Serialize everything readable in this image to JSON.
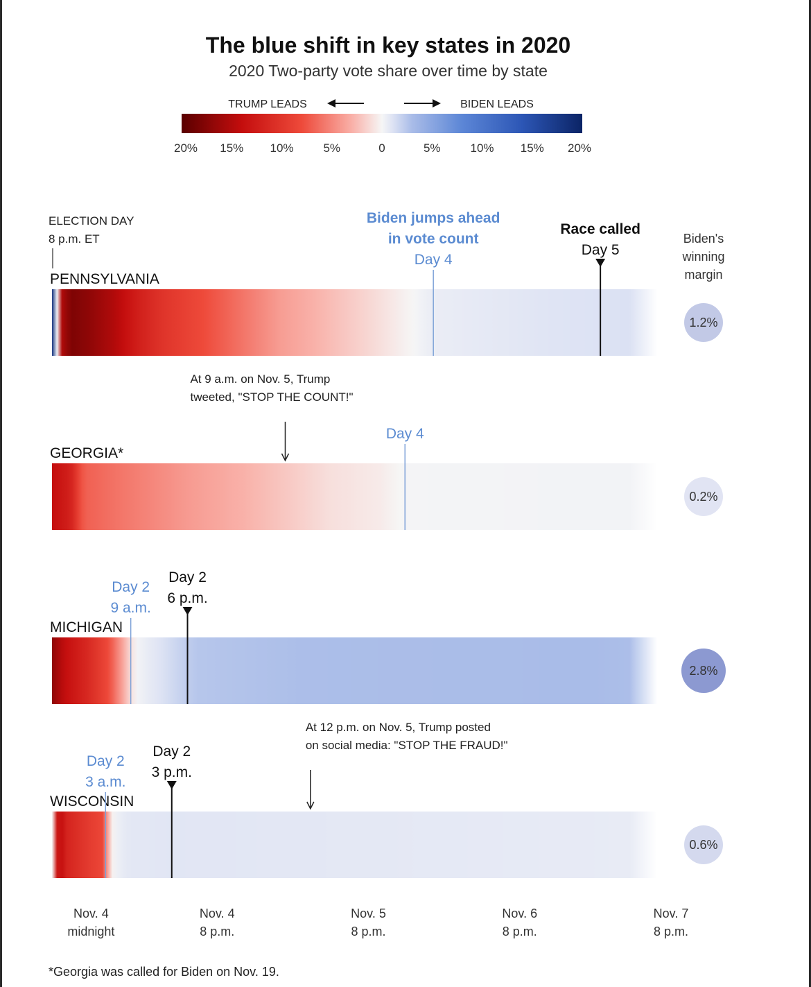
{
  "chart_data": {
    "type": "heatmap",
    "title": "The blue shift in key states in 2020",
    "subtitle": "2020 Two-party vote share over time by state",
    "legend": {
      "left_label": "TRUMP LEADS",
      "right_label": "BIDEN LEADS",
      "ticks": [
        "20%",
        "15%",
        "10%",
        "5%",
        "0",
        "5%",
        "10%",
        "15%",
        "20%"
      ],
      "tick_values": [
        -20,
        -15,
        -10,
        -5,
        0,
        5,
        10,
        15,
        20
      ],
      "colors": {
        "trump_max": "#5a0000",
        "trump_mid": "#ee4a3a",
        "neutral": "#f6f6f6",
        "biden_mid": "#5c86d6",
        "biden_max": "#0b2466"
      }
    },
    "x_axis": {
      "ticks": [
        {
          "line1": "Nov. 4",
          "line2": "midnight",
          "t": 4
        },
        {
          "line1": "Nov. 4",
          "line2": "8 p.m.",
          "t": 24
        },
        {
          "line1": "Nov. 5",
          "line2": "8 p.m.",
          "t": 48
        },
        {
          "line1": "Nov. 6",
          "line2": "8 p.m.",
          "t": 72
        },
        {
          "line1": "Nov. 7",
          "line2": "8 p.m.",
          "t": 96
        }
      ],
      "range_hours": [
        0,
        96
      ]
    },
    "margin_header": [
      "Biden's",
      "winning",
      "margin"
    ],
    "election_day": {
      "line1": "ELECTION DAY",
      "line2": "8 p.m. ET"
    },
    "series": [
      {
        "name": "PENNSYLVANIA",
        "winning_margin": "1.2%",
        "margin_value": 1.2,
        "margin_series": [
          [
            0,
            18
          ],
          [
            1.5,
            -15
          ],
          [
            3,
            -18
          ],
          [
            6,
            -17
          ],
          [
            10,
            -15
          ],
          [
            14,
            -12
          ],
          [
            18,
            -10
          ],
          [
            24,
            -8
          ],
          [
            30,
            -6
          ],
          [
            36,
            -4
          ],
          [
            44,
            -2.5
          ],
          [
            52,
            -1
          ],
          [
            60,
            0.5
          ],
          [
            80,
            1.0
          ],
          [
            96,
            1.2
          ]
        ],
        "markers": [
          {
            "t": 60.5,
            "color": "blue",
            "lines": [
              "Biden jumps ahead",
              "in vote count",
              "Day 4"
            ],
            "bold_lines": 2
          },
          {
            "t": 87,
            "color": "black",
            "lines": [
              "Race called",
              "Day 5"
            ],
            "bold_lines": 1,
            "arrow": true
          }
        ]
      },
      {
        "name": "GEORGIA*",
        "winning_margin": "0.2%",
        "margin_value": 0.2,
        "margin_series": [
          [
            0,
            -14
          ],
          [
            3,
            -12
          ],
          [
            5,
            -7
          ],
          [
            10,
            -6
          ],
          [
            16,
            -5
          ],
          [
            22,
            -4
          ],
          [
            30,
            -3
          ],
          [
            37,
            -2
          ],
          [
            44,
            -1
          ],
          [
            52,
            -0.5
          ],
          [
            56,
            0.1
          ],
          [
            96,
            0.2
          ]
        ],
        "markers": [
          {
            "t": 56,
            "color": "blue",
            "lines": [
              "Day 4"
            ],
            "bold_lines": 0
          }
        ],
        "annotation": {
          "t": 37,
          "lines": [
            "At 9 a.m. on Nov. 5, Trump",
            "tweeted, \"STOP THE COUNT!\""
          ]
        }
      },
      {
        "name": "MICHIGAN",
        "winning_margin": "2.8%",
        "margin_value": 2.8,
        "margin_series": [
          [
            0,
            -17
          ],
          [
            2,
            -14
          ],
          [
            6,
            -11
          ],
          [
            9,
            -8
          ],
          [
            11,
            -4
          ],
          [
            12.5,
            -1
          ],
          [
            13.5,
            0.2
          ],
          [
            17,
            1.0
          ],
          [
            20,
            1.8
          ],
          [
            23,
            2.5
          ],
          [
            40,
            2.9
          ],
          [
            86,
            3.0
          ],
          [
            96,
            2.8
          ]
        ],
        "markers": [
          {
            "t": 12.5,
            "color": "blue",
            "lines": [
              "Day 2",
              "9 a.m."
            ],
            "bold_lines": 0
          },
          {
            "t": 21.5,
            "color": "black",
            "lines": [
              "Day 2",
              "6 p.m."
            ],
            "bold_lines": 0,
            "arrow": true
          }
        ]
      },
      {
        "name": "WISCONSIN",
        "winning_margin": "0.6%",
        "margin_value": 0.6,
        "margin_series": [
          [
            0,
            0
          ],
          [
            1,
            -16
          ],
          [
            2,
            -12
          ],
          [
            5,
            -10
          ],
          [
            8.5,
            -8
          ],
          [
            9,
            -1
          ],
          [
            10,
            0.3
          ],
          [
            12,
            0.8
          ],
          [
            19,
            0.9
          ],
          [
            96,
            0.6
          ]
        ],
        "markers": [
          {
            "t": 8.5,
            "color": "blue",
            "lines": [
              "Day 2",
              "3 a.m."
            ],
            "bold_lines": 0
          },
          {
            "t": 19,
            "color": "black",
            "lines": [
              "Day 2",
              "3 p.m."
            ],
            "bold_lines": 0,
            "arrow": true
          }
        ],
        "annotation": {
          "t": 41,
          "lines": [
            "At 12 p.m. on Nov. 5, Trump posted",
            "on social media: \"STOP THE FRAUD!\""
          ]
        }
      }
    ],
    "footnote": "*Georgia was called for Biden on Nov. 19."
  }
}
